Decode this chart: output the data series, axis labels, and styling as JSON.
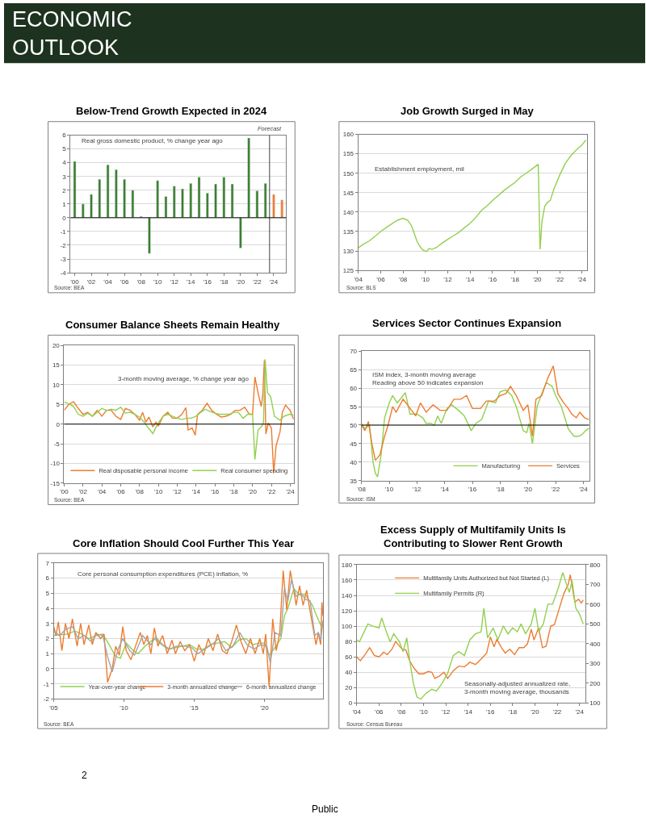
{
  "chart_data": [
    {
      "type": "other",
      "title": "ECONOMIC OUTLOOK",
      "annotations": [
        "2",
        "Public"
      ]
    },
    {
      "type": "bar",
      "title": "Below-Trend Growth Expected in 2024",
      "x": [
        2000,
        2001,
        2002,
        2003,
        2004,
        2005,
        2006,
        2007,
        2008,
        2009,
        2010,
        2011,
        2012,
        2013,
        2014,
        2015,
        2016,
        2017,
        2018,
        2019,
        2020,
        2021,
        2022,
        2023,
        2024,
        2025
      ],
      "values": [
        4.1,
        1.0,
        1.7,
        2.8,
        3.85,
        3.5,
        2.8,
        2.0,
        0.1,
        -2.6,
        2.7,
        1.55,
        2.3,
        2.1,
        2.5,
        2.95,
        1.8,
        2.45,
        2.95,
        2.45,
        -2.2,
        5.8,
        1.95,
        2.5,
        1.7,
        1.3
      ],
      "colors": [
        "#3a7d2c",
        "#3a7d2c",
        "#3a7d2c",
        "#3a7d2c",
        "#3a7d2c",
        "#3a7d2c",
        "#3a7d2c",
        "#3a7d2c",
        "#3a7d2c",
        "#3a7d2c",
        "#3a7d2c",
        "#3a7d2c",
        "#3a7d2c",
        "#3a7d2c",
        "#3a7d2c",
        "#3a7d2c",
        "#3a7d2c",
        "#3a7d2c",
        "#3a7d2c",
        "#3a7d2c",
        "#3a7d2c",
        "#3a7d2c",
        "#3a7d2c",
        "#3a7d2c",
        "#ed7d31",
        "#ed7d31"
      ],
      "xlim": [
        1999.5,
        2025.5
      ],
      "xticks": [
        {
          "value": 2000,
          "label": "'00"
        },
        {
          "value": 2002,
          "label": "'02"
        },
        {
          "value": 2004,
          "label": "'04"
        },
        {
          "value": 2006,
          "label": "'06"
        },
        {
          "value": 2008,
          "label": "'08"
        },
        {
          "value": 2010,
          "label": "'10"
        },
        {
          "value": 2012,
          "label": "'12"
        },
        {
          "value": 2014,
          "label": "'14"
        },
        {
          "value": 2016,
          "label": "'16"
        },
        {
          "value": 2018,
          "label": "'18"
        },
        {
          "value": 2020,
          "label": "'20"
        },
        {
          "value": 2022,
          "label": "'22"
        },
        {
          "value": 2024,
          "label": "'24"
        }
      ],
      "ylim": [
        -4,
        6
      ],
      "yticks": [
        -4,
        -3,
        -2,
        -1,
        0,
        1,
        2,
        3,
        4,
        5,
        6
      ],
      "grid": "y",
      "ref_lines": [
        {
          "axis": "x",
          "value": 2023.5,
          "label": "Forecast",
          "color": "#404040"
        },
        {
          "axis": "y",
          "value": 0,
          "color": "#000000"
        }
      ],
      "annotations": [
        "Real gross domestic product, % change year ago",
        "Source: BEA"
      ]
    },
    {
      "type": "line",
      "title": "Job Growth Surged in May",
      "x": [
        "2004-01",
        "2004-07",
        "2005-01",
        "2005-07",
        "2006-01",
        "2006-07",
        "2007-01",
        "2007-07",
        "2008-01",
        "2008-06",
        "2008-10",
        "2009-01",
        "2009-04",
        "2009-07",
        "2009-10",
        "2010-02",
        "2010-05",
        "2010-08",
        "2011-01",
        "2011-07",
        "2012-01",
        "2012-07",
        "2013-01",
        "2013-07",
        "2014-01",
        "2014-07",
        "2015-01",
        "2015-07",
        "2016-01",
        "2016-07",
        "2017-01",
        "2017-07",
        "2018-01",
        "2018-07",
        "2019-01",
        "2019-07",
        "2020-02",
        "2020-04",
        "2020-06",
        "2020-09",
        "2020-12",
        "2021-03",
        "2021-07",
        "2022-01",
        "2022-07",
        "2023-01",
        "2023-07",
        "2024-01",
        "2024-05"
      ],
      "series": [
        {
          "color": "#92d050",
          "values": [
            130.8,
            131.8,
            132.6,
            133.8,
            135.0,
            136.0,
            137.0,
            137.9,
            138.4,
            137.9,
            136.5,
            134.5,
            132.5,
            131.2,
            130.3,
            129.8,
            130.6,
            130.4,
            130.9,
            132.0,
            133.0,
            133.9,
            134.8,
            136.0,
            137.1,
            138.6,
            140.4,
            141.6,
            143.0,
            144.2,
            145.5,
            146.6,
            147.6,
            149.0,
            150.0,
            151.0,
            152.3,
            130.4,
            137.5,
            141.5,
            142.5,
            143.0,
            146.0,
            149.5,
            152.5,
            154.5,
            156.0,
            157.3,
            158.5
          ]
        }
      ],
      "xlim": [
        "2004-01",
        "2024-06"
      ],
      "xticks": [
        {
          "value": "2004",
          "label": "'04"
        },
        {
          "value": "2006",
          "label": "'06"
        },
        {
          "value": "2008",
          "label": "'08"
        },
        {
          "value": "2010",
          "label": "'10"
        },
        {
          "value": "2012",
          "label": "'12"
        },
        {
          "value": "2014",
          "label": "'14"
        },
        {
          "value": "2016",
          "label": "'16"
        },
        {
          "value": "2018",
          "label": "'18"
        },
        {
          "value": "2020",
          "label": "'20"
        },
        {
          "value": "2022",
          "label": "'22"
        },
        {
          "value": "2024",
          "label": "'24"
        }
      ],
      "ylim": [
        125,
        160
      ],
      "yticks": [
        125,
        130,
        135,
        140,
        145,
        150,
        155,
        160
      ],
      "grid": "y",
      "annotations": [
        "Establishment employment, mil",
        "Source: BLS"
      ]
    },
    {
      "type": "line",
      "title": "Consumer Balance Sheets Remain Healthy",
      "series": [
        {
          "name": "Real disposable personal income",
          "color": "#ed7d31",
          "x": [
            "2000-01",
            "2000-07",
            "2001-01",
            "2001-07",
            "2002-01",
            "2002-07",
            "2003-01",
            "2003-07",
            "2004-01",
            "2004-07",
            "2005-01",
            "2005-07",
            "2006-01",
            "2006-07",
            "2007-01",
            "2007-07",
            "2008-01",
            "2008-05",
            "2008-09",
            "2009-01",
            "2009-06",
            "2009-10",
            "2010-01",
            "2010-07",
            "2011-01",
            "2011-07",
            "2012-01",
            "2012-07",
            "2012-12",
            "2013-03",
            "2013-08",
            "2013-12",
            "2014-03",
            "2014-09",
            "2015-03",
            "2015-09",
            "2016-03",
            "2016-09",
            "2017-03",
            "2017-09",
            "2018-03",
            "2018-09",
            "2019-03",
            "2019-09",
            "2020-01",
            "2020-04",
            "2020-08",
            "2020-12",
            "2021-02",
            "2021-04",
            "2021-06",
            "2021-09",
            "2022-01",
            "2022-04",
            "2022-07",
            "2022-12",
            "2023-03",
            "2023-07",
            "2024-01",
            "2024-05"
          ],
          "values": [
            3.5,
            5.0,
            5.7,
            4.0,
            2.5,
            3.0,
            2.0,
            3.5,
            2.0,
            3.5,
            3.5,
            2.0,
            1.2,
            4.0,
            3.5,
            2.5,
            1.0,
            3.0,
            0.5,
            1.8,
            -0.7,
            0.5,
            -0.5,
            2.0,
            3.0,
            1.5,
            1.5,
            2.5,
            4.2,
            -1.5,
            -1.0,
            -2.8,
            2.5,
            3.5,
            5.3,
            3.5,
            2.5,
            1.8,
            2.0,
            2.5,
            3.5,
            3.5,
            4.3,
            2.5,
            2.5,
            12.0,
            8.0,
            4.5,
            7.5,
            16.2,
            -2.5,
            0.3,
            -1.0,
            -12.5,
            -5.5,
            -2.0,
            3.0,
            4.8,
            3.5,
            1.3
          ]
        },
        {
          "name": "Real consumer spending",
          "color": "#92d050",
          "x": [
            "2000-01",
            "2000-07",
            "2001-01",
            "2001-07",
            "2002-01",
            "2002-07",
            "2003-01",
            "2003-07",
            "2004-01",
            "2004-07",
            "2005-01",
            "2005-07",
            "2006-01",
            "2006-07",
            "2007-01",
            "2007-07",
            "2008-01",
            "2008-07",
            "2009-01",
            "2009-06",
            "2009-12",
            "2010-07",
            "2011-01",
            "2011-07",
            "2012-01",
            "2012-07",
            "2013-01",
            "2013-07",
            "2014-01",
            "2014-07",
            "2015-01",
            "2015-07",
            "2016-01",
            "2016-07",
            "2017-01",
            "2017-07",
            "2018-01",
            "2018-07",
            "2019-01",
            "2019-07",
            "2020-01",
            "2020-04",
            "2020-08",
            "2021-01",
            "2021-03",
            "2021-05",
            "2021-08",
            "2021-12",
            "2022-05",
            "2022-12",
            "2023-05",
            "2023-12",
            "2024-05"
          ],
          "values": [
            5.6,
            5.2,
            4.5,
            2.5,
            2.0,
            2.8,
            2.0,
            3.0,
            4.0,
            3.5,
            3.8,
            3.5,
            4.3,
            2.8,
            3.0,
            2.5,
            1.8,
            0.5,
            -1.2,
            -2.4,
            0.0,
            2.0,
            2.5,
            2.0,
            1.5,
            1.2,
            1.5,
            1.5,
            2.0,
            3.0,
            3.8,
            3.2,
            2.8,
            2.5,
            2.5,
            2.5,
            3.0,
            3.0,
            1.5,
            2.5,
            2.5,
            -9.0,
            -1.5,
            -0.5,
            0.5,
            16.5,
            8.0,
            7.0,
            2.0,
            1.0,
            2.0,
            2.5,
            2.3
          ]
        }
      ],
      "xlim": [
        "2000-01",
        "2024-06"
      ],
      "xticks": [
        {
          "value": "2000",
          "label": "'00"
        },
        {
          "value": "2002",
          "label": "'02"
        },
        {
          "value": "2004",
          "label": "'04"
        },
        {
          "value": "2006",
          "label": "'06"
        },
        {
          "value": "2008",
          "label": "'08"
        },
        {
          "value": "2010",
          "label": "'10"
        },
        {
          "value": "2012",
          "label": "'12"
        },
        {
          "value": "2014",
          "label": "'14"
        },
        {
          "value": "2016",
          "label": "'16"
        },
        {
          "value": "2018",
          "label": "'18"
        },
        {
          "value": "2020",
          "label": "'20"
        },
        {
          "value": "2022",
          "label": "'22"
        },
        {
          "value": "2024",
          "label": "'24"
        }
      ],
      "ylim": [
        -15,
        20
      ],
      "yticks": [
        -15,
        -10,
        -5,
        0,
        5,
        10,
        15,
        20
      ],
      "grid": "y",
      "legend": "bottom",
      "ref_lines": [
        {
          "axis": "y",
          "value": 0,
          "color": "#000000"
        }
      ],
      "annotations": [
        "3-month moving average, % change year ago",
        "Source: BEA"
      ]
    },
    {
      "type": "line",
      "title": "Services Sector Continues Expansion",
      "series": [
        {
          "name": "Manufacturing",
          "color": "#92d050",
          "x": [
            "2008-01",
            "2008-04",
            "2008-08",
            "2008-11",
            "2009-01",
            "2009-03",
            "2009-06",
            "2009-09",
            "2010-01",
            "2010-04",
            "2010-08",
            "2011-01",
            "2011-03",
            "2011-07",
            "2012-01",
            "2012-06",
            "2012-09",
            "2013-01",
            "2013-04",
            "2013-07",
            "2013-10",
            "2014-03",
            "2014-07",
            "2015-01",
            "2015-06",
            "2015-12",
            "2016-04",
            "2016-09",
            "2017-03",
            "2017-09",
            "2018-01",
            "2018-06",
            "2018-11",
            "2019-03",
            "2019-09",
            "2019-12",
            "2020-02",
            "2020-05",
            "2020-09",
            "2021-01",
            "2021-05",
            "2021-10",
            "2022-01",
            "2022-06",
            "2022-12",
            "2023-05",
            "2023-09",
            "2023-12",
            "2024-03",
            "2024-06"
          ],
          "values": [
            50.5,
            49.0,
            50.0,
            40.0,
            37.0,
            36.0,
            42.0,
            52.0,
            56.0,
            58.0,
            56.0,
            58.0,
            58.8,
            53.0,
            53.0,
            52.0,
            50.5,
            50.5,
            50.0,
            52.5,
            50.5,
            54.5,
            55.5,
            54.0,
            52.5,
            48.5,
            50.5,
            51.5,
            56.5,
            56.0,
            59.0,
            59.5,
            58.0,
            55.0,
            48.5,
            48.0,
            50.5,
            45.0,
            55.0,
            58.5,
            61.5,
            60.5,
            58.0,
            55.0,
            49.0,
            47.0,
            47.0,
            47.5,
            48.5,
            49.2
          ]
        },
        {
          "name": "Services",
          "color": "#ed7d31",
          "x": [
            "2008-01",
            "2008-04",
            "2008-07",
            "2008-10",
            "2009-01",
            "2009-05",
            "2009-09",
            "2009-12",
            "2010-04",
            "2010-07",
            "2011-01",
            "2011-06",
            "2011-12",
            "2012-04",
            "2012-09",
            "2013-03",
            "2013-09",
            "2014-03",
            "2014-09",
            "2015-03",
            "2015-08",
            "2016-01",
            "2016-08",
            "2017-01",
            "2017-08",
            "2018-01",
            "2018-06",
            "2018-10",
            "2019-03",
            "2019-09",
            "2020-01",
            "2020-05",
            "2020-08",
            "2021-01",
            "2021-06",
            "2021-11",
            "2022-03",
            "2022-08",
            "2022-12",
            "2023-03",
            "2023-07",
            "2023-10",
            "2024-02",
            "2024-06"
          ],
          "values": [
            50.0,
            48.5,
            51.0,
            45.0,
            40.5,
            42.0,
            47.0,
            50.0,
            55.0,
            53.5,
            57.0,
            55.0,
            52.5,
            56.0,
            53.5,
            55.5,
            54.0,
            54.0,
            57.0,
            57.0,
            58.0,
            54.5,
            54.5,
            56.5,
            56.5,
            58.0,
            58.5,
            60.5,
            58.0,
            54.0,
            55.5,
            47.0,
            57.0,
            58.0,
            62.5,
            66.0,
            58.5,
            56.0,
            54.5,
            53.0,
            52.0,
            53.5,
            52.0,
            51.5
          ]
        }
      ],
      "xlim": [
        "2008-01",
        "2024-06"
      ],
      "xticks": [
        {
          "value": "2008",
          "label": "'08"
        },
        {
          "value": "2010",
          "label": "'10"
        },
        {
          "value": "2012",
          "label": "'12"
        },
        {
          "value": "2014",
          "label": "'14"
        },
        {
          "value": "2016",
          "label": "'16"
        },
        {
          "value": "2018",
          "label": "'18"
        },
        {
          "value": "2020",
          "label": "'20"
        },
        {
          "value": "2022",
          "label": "'22"
        },
        {
          "value": "2024",
          "label": "'24"
        }
      ],
      "ylim": [
        35,
        70
      ],
      "yticks": [
        35,
        40,
        45,
        50,
        55,
        60,
        65,
        70
      ],
      "grid": "y",
      "legend": "bottom right",
      "ref_lines": [
        {
          "axis": "y",
          "value": 50,
          "color": "#000000"
        }
      ],
      "annotations": [
        "ISM index, 3-month moving average\nReading above 50 indicates expansion",
        "Source: ISM"
      ]
    },
    {
      "type": "line",
      "title": "Core Inflation Should Cool Further This Year",
      "series": [
        {
          "name": "Year-over-year change",
          "color": "#92d050",
          "x": [
            "2005-01",
            "2006-01",
            "2006-07",
            "2007-01",
            "2007-07",
            "2008-01",
            "2008-07",
            "2009-01",
            "2009-06",
            "2009-10",
            "2010-03",
            "2010-09",
            "2011-01",
            "2011-07",
            "2012-03",
            "2012-09",
            "2013-03",
            "2013-09",
            "2014-03",
            "2014-09",
            "2015-03",
            "2015-09",
            "2016-03",
            "2016-09",
            "2017-03",
            "2017-09",
            "2018-03",
            "2018-09",
            "2019-03",
            "2019-09",
            "2020-01",
            "2020-05",
            "2020-10",
            "2021-03",
            "2021-06",
            "2021-09",
            "2022-02",
            "2022-07",
            "2022-12",
            "2023-06",
            "2023-09",
            "2024-01",
            "2024-03"
          ],
          "values": [
            2.2,
            2.3,
            2.5,
            2.3,
            2.0,
            2.2,
            2.3,
            1.5,
            0.8,
            0.7,
            1.7,
            1.2,
            1.0,
            1.5,
            2.0,
            1.6,
            1.3,
            1.4,
            1.5,
            1.6,
            1.3,
            1.3,
            1.6,
            1.7,
            1.8,
            1.4,
            1.9,
            2.0,
            1.6,
            1.7,
            1.7,
            0.9,
            1.4,
            2.0,
            3.5,
            4.0,
            5.3,
            4.9,
            4.9,
            4.2,
            3.6,
            2.9,
            2.8
          ]
        },
        {
          "name": "3-month annualized change",
          "color": "#ed7d31",
          "x": [
            "2005-01",
            "2005-03",
            "2005-05",
            "2005-08",
            "2005-11",
            "2006-02",
            "2006-05",
            "2006-09",
            "2006-12",
            "2007-03",
            "2007-07",
            "2007-10",
            "2008-01",
            "2008-05",
            "2008-08",
            "2008-11",
            "2009-03",
            "2009-06",
            "2009-09",
            "2009-12",
            "2010-03",
            "2010-07",
            "2010-10",
            "2011-03",
            "2011-06",
            "2011-09",
            "2011-12",
            "2012-03",
            "2012-06",
            "2012-10",
            "2013-02",
            "2013-06",
            "2013-09",
            "2014-01",
            "2014-05",
            "2014-09",
            "2015-01",
            "2015-05",
            "2015-09",
            "2016-01",
            "2016-05",
            "2016-09",
            "2017-01",
            "2017-05",
            "2017-09",
            "2018-01",
            "2018-05",
            "2018-09",
            "2019-01",
            "2019-05",
            "2019-09",
            "2019-12",
            "2020-02",
            "2020-05",
            "2020-08",
            "2020-11",
            "2021-02",
            "2021-05",
            "2021-08",
            "2021-11",
            "2022-02",
            "2022-04",
            "2022-07",
            "2022-10",
            "2023-01",
            "2023-04",
            "2023-07",
            "2023-09",
            "2023-11",
            "2024-01",
            "2024-02",
            "2024-03"
          ],
          "values": [
            2.8,
            2.2,
            3.1,
            1.2,
            3.0,
            2.0,
            3.3,
            1.5,
            3.0,
            1.6,
            2.9,
            1.6,
            2.4,
            2.0,
            2.3,
            -0.9,
            0.0,
            1.5,
            0.9,
            2.8,
            1.2,
            0.6,
            1.3,
            2.4,
            1.6,
            2.2,
            1.0,
            2.7,
            1.5,
            2.2,
            1.0,
            1.9,
            1.0,
            1.8,
            1.2,
            1.6,
            0.5,
            1.6,
            0.9,
            2.0,
            1.2,
            2.3,
            1.2,
            1.0,
            1.8,
            2.9,
            1.8,
            1.0,
            2.0,
            1.0,
            2.0,
            1.0,
            2.3,
            -1.2,
            3.3,
            1.2,
            2.4,
            6.5,
            3.9,
            6.5,
            5.2,
            4.2,
            5.5,
            4.2,
            5.2,
            3.8,
            2.5,
            1.6,
            2.4,
            1.6,
            4.4,
            3.5
          ]
        },
        {
          "name": "6-month annualized change",
          "color": "#a5a5a5",
          "x": [
            "2005-01",
            "2005-06",
            "2005-11",
            "2006-05",
            "2006-10",
            "2007-03",
            "2007-09",
            "2008-02",
            "2008-07",
            "2008-11",
            "2009-03",
            "2009-08",
            "2009-12",
            "2010-06",
            "2010-10",
            "2011-05",
            "2011-12",
            "2012-04",
            "2012-10",
            "2013-04",
            "2013-10",
            "2014-05",
            "2014-11",
            "2015-04",
            "2015-10",
            "2016-04",
            "2016-10",
            "2017-04",
            "2017-10",
            "2018-04",
            "2018-10",
            "2019-04",
            "2019-10",
            "2020-03",
            "2020-06",
            "2020-10",
            "2021-03",
            "2021-06",
            "2021-09",
            "2021-12",
            "2022-04",
            "2022-08",
            "2022-12",
            "2023-04",
            "2023-08",
            "2023-11",
            "2024-01",
            "2024-03"
          ],
          "values": [
            2.5,
            2.2,
            2.6,
            2.8,
            2.0,
            2.2,
            1.8,
            2.3,
            2.2,
            0.8,
            -0.2,
            1.3,
            2.0,
            1.2,
            0.9,
            2.2,
            1.6,
            2.1,
            1.6,
            1.3,
            1.5,
            1.5,
            1.4,
            1.0,
            1.3,
            1.6,
            2.0,
            1.2,
            1.5,
            2.4,
            1.6,
            1.3,
            1.6,
            1.5,
            0.4,
            2.4,
            2.2,
            5.3,
            4.5,
            5.9,
            4.8,
            5.0,
            4.6,
            4.5,
            2.2,
            2.4,
            1.9,
            3.2
          ]
        }
      ],
      "xlim": [
        "2005-01",
        "2024-03"
      ],
      "xticks": [
        {
          "value": "2005",
          "label": "'05"
        },
        {
          "value": "2010",
          "label": "'10"
        },
        {
          "value": "2015",
          "label": "'15"
        },
        {
          "value": "2020",
          "label": "'20"
        }
      ],
      "ylim": [
        -2,
        7
      ],
      "yticks": [
        -2,
        -1,
        0,
        1,
        2,
        3,
        4,
        5,
        6,
        7
      ],
      "grid": "y",
      "legend": "bottom",
      "annotations": [
        "Core personal consumption expenditures (PCE) inflation, %",
        "Source: BEA"
      ]
    },
    {
      "type": "line",
      "title": "Excess Supply of Multifamily Units Is\nContributing to Slower Rent Growth",
      "series": [
        {
          "name": "Multifamily Units Authorized but Not Started (L)",
          "color": "#ed7d31",
          "x": [
            "2004-01",
            "2004-05",
            "2004-10",
            "2005-03",
            "2005-08",
            "2006-01",
            "2006-06",
            "2006-10",
            "2007-03",
            "2007-07",
            "2007-11",
            "2008-02",
            "2008-06",
            "2008-10",
            "2009-03",
            "2009-08",
            "2010-01",
            "2010-06",
            "2010-10",
            "2011-01",
            "2011-06",
            "2011-11",
            "2012-03",
            "2012-09",
            "2013-03",
            "2013-09",
            "2014-03",
            "2014-09",
            "2015-03",
            "2015-09",
            "2016-01",
            "2016-05",
            "2016-08",
            "2017-01",
            "2017-05",
            "2017-10",
            "2018-03",
            "2018-08",
            "2019-01",
            "2019-05",
            "2019-09",
            "2019-12",
            "2020-05",
            "2020-09",
            "2021-01",
            "2021-06",
            "2021-10",
            "2022-03",
            "2022-08",
            "2023-01",
            "2023-03",
            "2023-08",
            "2023-12",
            "2024-03",
            "2024-05"
          ],
          "values": [
            60,
            55,
            63,
            72,
            62,
            60,
            66,
            63,
            70,
            80,
            74,
            70,
            69,
            55,
            45,
            38,
            38,
            41,
            40,
            32,
            35,
            40,
            32,
            42,
            48,
            47,
            53,
            50,
            57,
            65,
            86,
            73,
            83,
            72,
            65,
            70,
            63,
            72,
            72,
            77,
            96,
            82,
            98,
            72,
            74,
            100,
            102,
            122,
            142,
            155,
            167,
            131,
            135,
            130,
            134
          ]
        },
        {
          "name": "Multifamily Permits (R)",
          "color": "#92d050",
          "axis": "y2",
          "x": [
            "2004-01",
            "2004-04",
            "2004-08",
            "2005-01",
            "2005-06",
            "2006-01",
            "2006-04",
            "2006-09",
            "2007-01",
            "2007-05",
            "2007-11",
            "2008-03",
            "2008-07",
            "2008-10",
            "2009-02",
            "2009-06",
            "2009-10",
            "2010-04",
            "2010-10",
            "2011-03",
            "2011-09",
            "2012-03",
            "2012-09",
            "2013-03",
            "2013-09",
            "2014-03",
            "2014-09",
            "2015-03",
            "2015-06",
            "2015-10",
            "2016-04",
            "2016-09",
            "2017-03",
            "2017-08",
            "2018-01",
            "2018-06",
            "2018-10",
            "2019-03",
            "2019-09",
            "2020-01",
            "2020-05",
            "2020-10",
            "2021-03",
            "2021-08",
            "2022-02",
            "2022-07",
            "2022-11",
            "2023-02",
            "2023-05",
            "2023-09",
            "2024-01",
            "2024-05"
          ],
          "values": [
            420,
            410,
            450,
            500,
            490,
            480,
            530,
            460,
            410,
            450,
            410,
            360,
            430,
            320,
            200,
            130,
            120,
            150,
            170,
            160,
            200,
            250,
            340,
            360,
            340,
            420,
            450,
            460,
            580,
            430,
            480,
            420,
            490,
            450,
            480,
            460,
            500,
            450,
            500,
            580,
            460,
            500,
            600,
            600,
            680,
            760,
            700,
            660,
            720,
            580,
            550,
            500
          ]
        }
      ],
      "xlim": [
        "2004-01",
        "2024-07"
      ],
      "xticks": [
        {
          "value": "2004",
          "label": "'04"
        },
        {
          "value": "2006",
          "label": "'06"
        },
        {
          "value": "2008",
          "label": "'08"
        },
        {
          "value": "2010",
          "label": "'10"
        },
        {
          "value": "2012",
          "label": "'12"
        },
        {
          "value": "2014",
          "label": "'14"
        },
        {
          "value": "2016",
          "label": "'16"
        },
        {
          "value": "2018",
          "label": "'18"
        },
        {
          "value": "2020",
          "label": "'20"
        },
        {
          "value": "2022",
          "label": "'22"
        },
        {
          "value": "2024",
          "label": "'24"
        }
      ],
      "ylim": [
        0,
        180
      ],
      "yticks": [
        0,
        20,
        40,
        60,
        80,
        100,
        120,
        140,
        160,
        180
      ],
      "y2lim": [
        100,
        800
      ],
      "y2ticks": [
        100,
        200,
        300,
        400,
        500,
        600,
        700,
        800
      ],
      "grid": "y",
      "legend": "top",
      "annotations": [
        "Seasonally-adjusted annualized rate,\n3-month moving average, thousands",
        "Source: Census Bureau"
      ]
    }
  ]
}
